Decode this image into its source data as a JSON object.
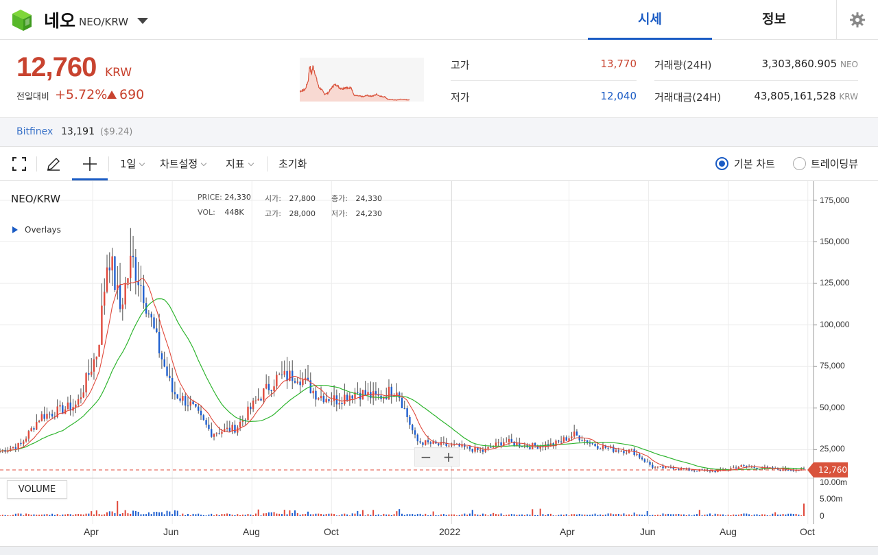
{
  "header": {
    "coin_name": "네오",
    "pair": "NEO/KRW",
    "tabs": [
      {
        "label": "시세",
        "active": true
      },
      {
        "label": "정보",
        "active": false
      }
    ],
    "icons": {
      "logo": "neo-logo-icon",
      "settings": "gear-icon",
      "dropdown": "caret-down-icon"
    }
  },
  "price": {
    "current": "12,760",
    "unit": "KRW",
    "change_label": "전일대비",
    "change_pct": "+5.72%",
    "change_amount": "690"
  },
  "stats": {
    "high_label": "고가",
    "high": "13,770",
    "low_label": "저가",
    "low": "12,040",
    "volume_label": "거래량(24H)",
    "volume": "3,303,860.905",
    "volume_unit": "NEO",
    "value_label": "거래대금(24H)",
    "value": "43,805,161,528",
    "value_unit": "KRW"
  },
  "bitfinex": {
    "name": "Bitfinex",
    "price": "13,191",
    "usd": "($9.24)"
  },
  "toolbar": {
    "interval": "1일",
    "chart_settings": "차트설정",
    "indicators": "지표",
    "reset": "초기화",
    "basic_chart": "기본 차트",
    "tradingview": "트레이딩뷰",
    "basic_selected": true
  },
  "chart": {
    "symbol": "NEO/KRW",
    "overlays": "Overlays",
    "info": {
      "price_k": "PRICE:",
      "price_v": "24,330",
      "open_k": "시가:",
      "open_v": "27,800",
      "close_k": "종가:",
      "close_v": "24,330",
      "vol_k": "VOL:",
      "vol_v": "448K",
      "high_k": "고가:",
      "high_v": "28,000",
      "low_k": "저가:",
      "low_v": "24,230"
    },
    "volume_label": "VOLUME",
    "zoom_out": "−",
    "zoom_in": "+",
    "last_price_tag": "12,760",
    "y_ticks": [
      "175,000",
      "150,000",
      "125,000",
      "100,000",
      "75,000",
      "50,000",
      "25,000"
    ],
    "vol_ticks": [
      "10.00m",
      "5.00m",
      "0"
    ],
    "x_ticks": [
      "Apr",
      "Jun",
      "Aug",
      "Oct",
      "2022",
      "Apr",
      "Jun",
      "Aug",
      "Oct"
    ],
    "colors": {
      "up": "#e0483a",
      "down": "#1f5fcf",
      "ma_short": "#e0483a",
      "ma_long": "#2fb52f"
    }
  },
  "chart_data": {
    "type": "line",
    "title": "NEO/KRW",
    "ylim": [
      0,
      185000
    ],
    "series": [
      {
        "x": [
          "2021-01-20",
          "2021-02-05",
          "2021-02-20",
          "2021-03-05",
          "2021-03-20",
          "2021-04-05",
          "2021-04-13",
          "2021-04-22",
          "2021-05-01",
          "2021-05-10",
          "2021-05-20",
          "2021-06-01",
          "2021-06-15",
          "2021-07-01",
          "2021-07-20",
          "2021-08-05",
          "2021-08-20",
          "2021-09-05",
          "2021-09-20",
          "2021-10-05",
          "2021-10-20",
          "2021-11-05",
          "2021-11-20",
          "2021-12-05",
          "2021-12-20",
          "2022-01-05",
          "2022-01-25",
          "2022-02-10",
          "2022-03-01",
          "2022-03-20",
          "2022-04-05",
          "2022-04-20",
          "2022-05-05",
          "2022-05-20",
          "2022-06-05",
          "2022-06-20",
          "2022-07-05",
          "2022-07-25",
          "2022-08-10",
          "2022-08-25",
          "2022-09-10",
          "2022-09-28"
        ],
        "values": [
          24000,
          28000,
          45000,
          48000,
          52000,
          85000,
          145000,
          110000,
          140000,
          120000,
          90000,
          60000,
          52000,
          35000,
          38000,
          55000,
          68000,
          70000,
          58000,
          55000,
          60000,
          56000,
          62000,
          30000,
          28000,
          27000,
          24000,
          30000,
          27000,
          28000,
          34000,
          28000,
          25000,
          24000,
          14000,
          14000,
          12500,
          12000,
          15000,
          14000,
          13000,
          12760
        ]
      }
    ],
    "volume_max": 10000000,
    "last_price": 12760
  }
}
